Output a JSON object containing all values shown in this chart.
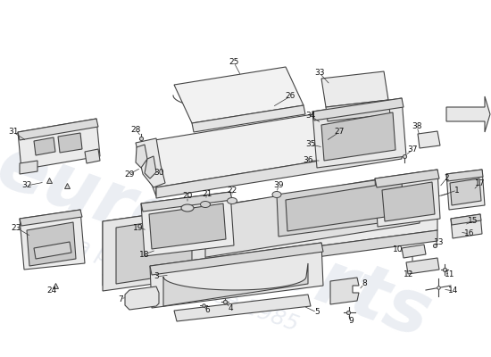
{
  "bg": "#ffffff",
  "ec": "#444444",
  "fc_light": "#f0f0f0",
  "fc_mid": "#e0e0e0",
  "fc_dark": "#cccccc",
  "wm1": "eurosports",
  "wm2": "a passion since 1985",
  "lfs": 6.5
}
